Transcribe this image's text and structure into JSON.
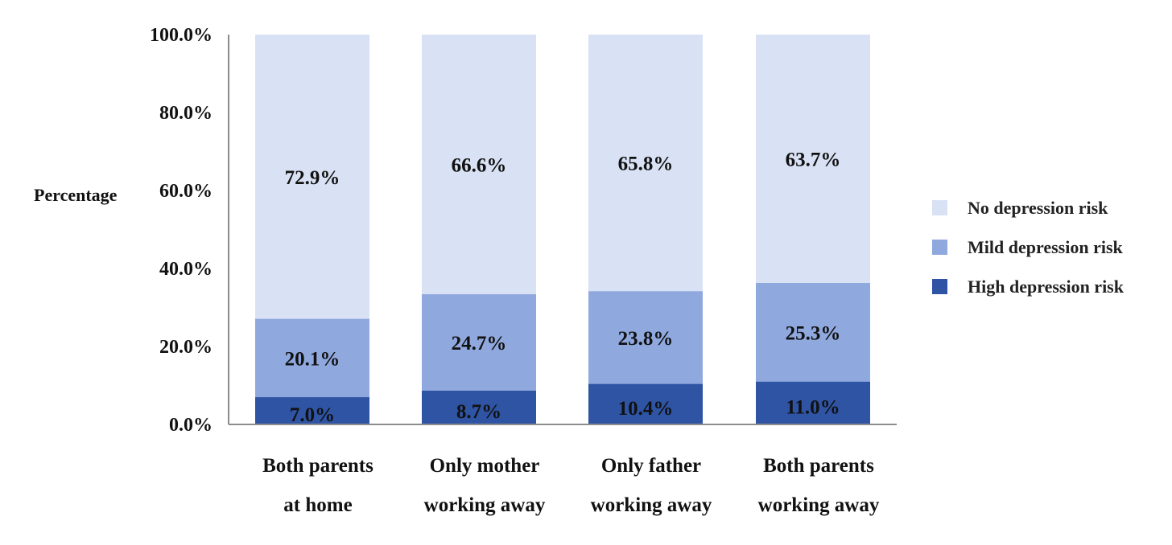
{
  "chart_data": {
    "type": "bar",
    "stacked": true,
    "ylabel": "Percentage",
    "xlabel": "",
    "ylim": [
      0,
      100
    ],
    "y_ticks": [
      "0.0%",
      "20.0%",
      "40.0%",
      "60.0%",
      "80.0%",
      "100.0%"
    ],
    "y_tick_values": [
      0,
      20,
      40,
      60,
      80,
      100
    ],
    "categories": [
      [
        "Both parents",
        "at home"
      ],
      [
        "Only mother",
        "working away"
      ],
      [
        "Only father",
        "working away"
      ],
      [
        "Both parents",
        "working away"
      ]
    ],
    "series": [
      {
        "name": "High depression risk",
        "color": "#2f54a4",
        "values": [
          7.0,
          8.7,
          10.4,
          11.0
        ],
        "labels": [
          "7.0%",
          "8.7%",
          "10.4%",
          "11.0%"
        ]
      },
      {
        "name": "Mild depression risk",
        "color": "#8fa9df",
        "values": [
          20.1,
          24.7,
          23.8,
          25.3
        ],
        "labels": [
          "20.1%",
          "24.7%",
          "23.8%",
          "25.3%"
        ]
      },
      {
        "name": "No depression risk",
        "color": "#d9e2f4",
        "values": [
          72.9,
          66.6,
          65.8,
          63.7
        ],
        "labels": [
          "72.9%",
          "66.6%",
          "65.8%",
          "63.7%"
        ]
      }
    ],
    "legend": {
      "position": "right",
      "order": [
        "No depression risk",
        "Mild depression risk",
        "High depression risk"
      ]
    },
    "grid": false
  }
}
